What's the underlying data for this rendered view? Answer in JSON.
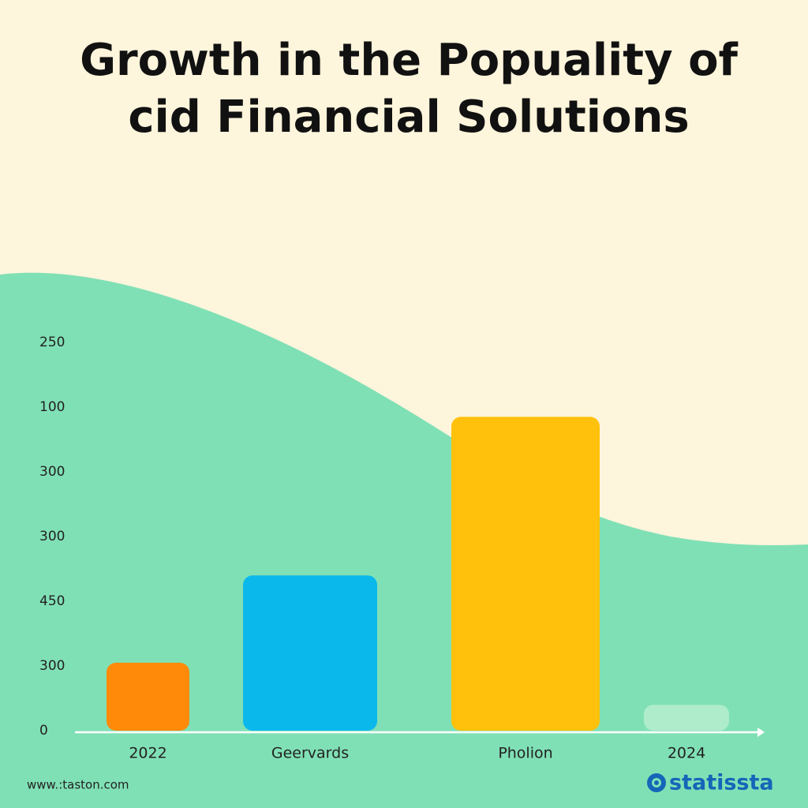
{
  "chart_data": {
    "type": "bar",
    "title": [
      "Growth in the Popuality of",
      "cid Financial Solutions"
    ],
    "categories": [
      "2022",
      "Geervards",
      "Pholion",
      "2024"
    ],
    "values": [
      1.05,
      2.4,
      4.85,
      0.4
    ],
    "colors": [
      "#ff8a0a",
      "#0bb8ec",
      "#ffc10b",
      "#aeeccb"
    ],
    "ylim": [
      0,
      6
    ],
    "yticks": [
      {
        "value": 0,
        "label": "0"
      },
      {
        "value": 1,
        "label": "300"
      },
      {
        "value": 2,
        "label": "450"
      },
      {
        "value": 3,
        "label": "300"
      },
      {
        "value": 4,
        "label": "300"
      },
      {
        "value": 5,
        "label": "100"
      },
      {
        "value": 6,
        "label": "250"
      }
    ],
    "source": "www.:taston.com",
    "logo": "statissta"
  }
}
